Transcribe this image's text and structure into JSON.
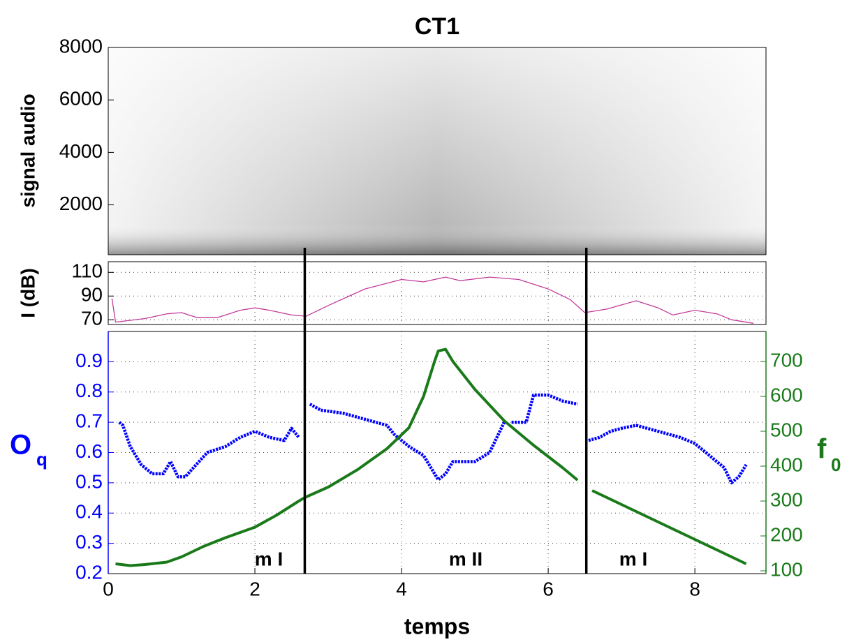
{
  "chart_data": [
    {
      "type": "spectrogram",
      "title": "CT1",
      "ylabel": "signal audio",
      "ylim": [
        100,
        8000
      ],
      "yticks": [
        2000,
        4000,
        6000,
        8000
      ]
    },
    {
      "type": "line",
      "ylabel": "I (dB)",
      "ylim": [
        66,
        119
      ],
      "yticks": [
        70,
        90,
        110
      ],
      "grid": true,
      "x": [
        0.05,
        0.1,
        0.5,
        0.8,
        1.0,
        1.2,
        1.5,
        1.8,
        2.0,
        2.2,
        2.5,
        2.7,
        3.0,
        3.5,
        4.0,
        4.3,
        4.6,
        4.8,
        5.2,
        5.6,
        6.0,
        6.3,
        6.5,
        6.8,
        7.2,
        7.5,
        7.7,
        8.0,
        8.3,
        8.5,
        8.8
      ],
      "series": [
        {
          "color": "#c23b9b",
          "values": [
            88,
            68,
            71,
            75,
            76,
            72,
            72,
            78,
            80,
            78,
            74,
            73,
            82,
            96,
            104,
            102,
            106,
            103,
            106,
            104,
            96,
            87,
            76,
            79,
            86,
            80,
            74,
            78,
            75,
            70,
            67
          ]
        }
      ]
    },
    {
      "type": "line",
      "xlabel": "temps",
      "ylabel": {
        "main": "O",
        "sub": "q"
      },
      "y2label": {
        "main": "f",
        "sub": "0"
      },
      "xlim": [
        0,
        8.97
      ],
      "xticks": [
        0,
        2,
        4,
        6,
        8
      ],
      "ylim": [
        0.2,
        1.0
      ],
      "yticks": [
        0.2,
        0.3,
        0.4,
        0.5,
        0.6,
        0.7,
        0.8,
        0.9
      ],
      "y2lim": [
        92,
        786
      ],
      "y2ticks": [
        100,
        200,
        300,
        400,
        500,
        600,
        700
      ],
      "grid": true,
      "boundaries": [
        2.68,
        6.52
      ],
      "annotations": [
        "m I",
        "m II",
        "m I"
      ],
      "series": [
        {
          "color": "#0000ff",
          "axis": "y",
          "x": [
            0.15,
            0.2,
            0.3,
            0.45,
            0.6,
            0.75,
            0.85,
            0.95,
            1.05,
            1.2,
            1.35,
            1.6,
            1.8,
            2.0,
            2.2,
            2.4,
            2.5,
            2.6,
            2.68,
            2.75,
            2.9,
            3.2,
            3.5,
            3.8,
            3.9,
            4.1,
            4.3,
            4.5,
            4.6,
            4.7,
            5.0,
            5.2,
            5.3,
            5.4,
            5.45,
            5.5,
            5.7,
            5.8,
            6.0,
            6.2,
            6.4,
            6.5,
            6.55,
            6.7,
            6.85,
            7.0,
            7.2,
            7.5,
            7.8,
            8.0,
            8.2,
            8.4,
            8.5,
            8.6,
            8.7
          ],
          "values": [
            0.7,
            0.69,
            0.62,
            0.56,
            0.53,
            0.53,
            0.57,
            0.52,
            0.52,
            0.56,
            0.6,
            0.62,
            0.65,
            0.67,
            0.65,
            0.64,
            0.68,
            0.65,
            null,
            0.76,
            0.74,
            0.73,
            0.71,
            0.69,
            0.66,
            0.62,
            0.59,
            0.51,
            0.53,
            0.57,
            0.57,
            0.6,
            0.65,
            0.7,
            null,
            0.7,
            0.7,
            0.79,
            0.79,
            0.77,
            0.76,
            null,
            0.64,
            0.65,
            0.67,
            0.68,
            0.69,
            0.67,
            0.65,
            0.63,
            0.59,
            0.55,
            0.5,
            0.52,
            0.56
          ]
        },
        {
          "color": "#1a7a1a",
          "axis": "y2",
          "x": [
            0.1,
            0.3,
            0.5,
            0.8,
            1.0,
            1.3,
            1.6,
            2.0,
            2.3,
            2.6,
            2.68,
            3.0,
            3.4,
            3.8,
            4.1,
            4.3,
            4.45,
            4.5,
            4.6,
            4.7,
            5.0,
            5.4,
            5.8,
            6.2,
            6.4,
            6.5,
            6.6,
            7.0,
            7.5,
            8.0,
            8.4,
            8.7
          ],
          "values": [
            120,
            115,
            118,
            125,
            140,
            170,
            195,
            225,
            260,
            300,
            310,
            340,
            390,
            450,
            510,
            600,
            700,
            730,
            735,
            700,
            620,
            530,
            460,
            395,
            360,
            null,
            330,
            290,
            240,
            190,
            150,
            120
          ]
        }
      ]
    }
  ]
}
